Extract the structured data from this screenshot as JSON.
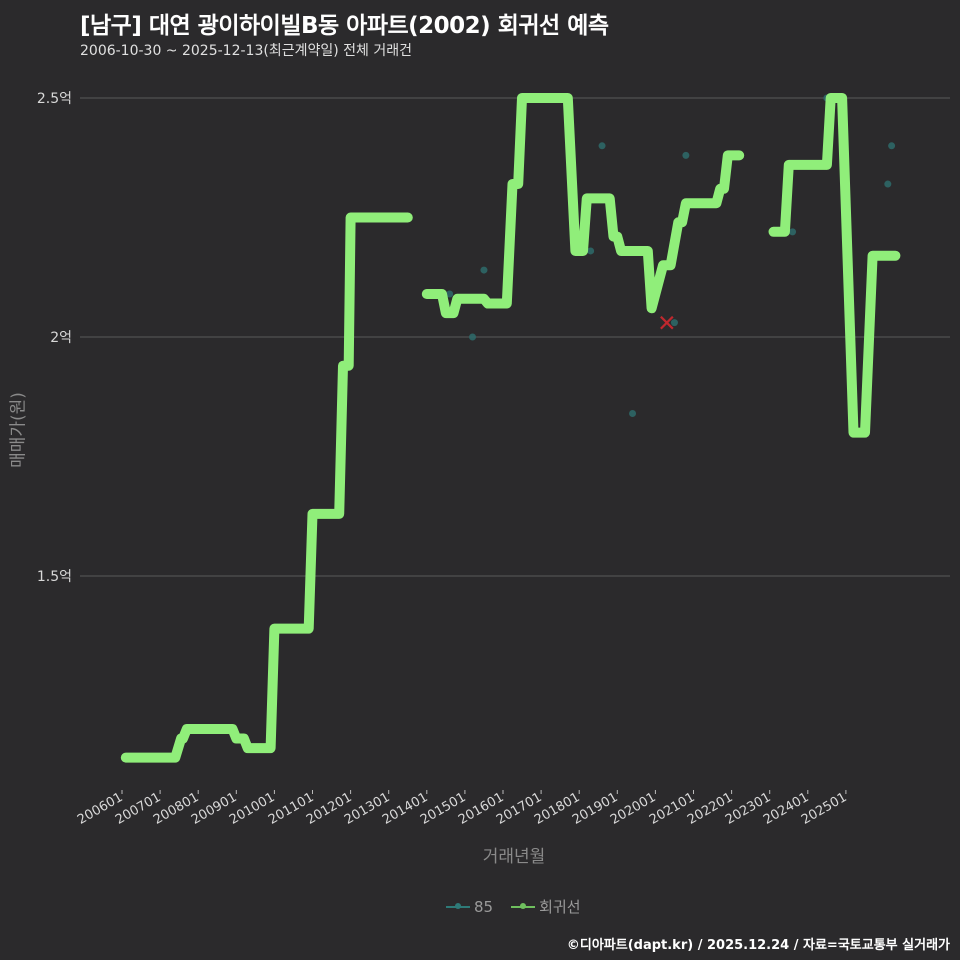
{
  "header": {
    "title": "[남구] 대연 광이하이빌B동 아파트(2002) 회귀선 예측",
    "subtitle": "2006-10-30 ~ 2025-12-13(최근계약일) 전체 거래건"
  },
  "footer": {
    "credit": "©디아파트(dapt.kr) / 2025.12.24 / 자료=국토교통부 실거래가"
  },
  "colors": {
    "background": "#2b2a2c",
    "regression_line": "#90ee7a",
    "points_85": "#2e6b6b",
    "outlier_marker": "#c0282e",
    "grid": "#5a5a5a"
  },
  "chart_data": {
    "type": "line",
    "title": "[남구] 대연 광이하이빌B동 아파트(2002) 회귀선 예측",
    "subtitle": "2006-10-30 ~ 2025-12-13(최근계약일) 전체 거래건",
    "xlabel": "거래년월",
    "ylabel": "매매가(원)",
    "y_ticks": [
      {
        "value": 2.5,
        "label": "2.5억"
      },
      {
        "value": 2.0,
        "label": "2억"
      },
      {
        "value": 1.5,
        "label": "1.5억"
      }
    ],
    "x_ticks": [
      "200601",
      "200701",
      "200801",
      "200901",
      "201001",
      "201101",
      "201201",
      "201301",
      "201401",
      "201501",
      "201601",
      "201701",
      "201801",
      "201901",
      "202001",
      "202101",
      "202201",
      "202301",
      "202401",
      "202501"
    ],
    "ylim": [
      1.05,
      2.6
    ],
    "y_unit": "억",
    "grid": true,
    "legend_position": "bottom",
    "legend": [
      "85",
      "회귀선"
    ],
    "series": [
      {
        "name": "회귀선",
        "segments": [
          [
            [
              2006.1,
              1.12
            ],
            [
              2007.4,
              1.12
            ],
            [
              2007.55,
              1.16
            ],
            [
              2007.6,
              1.16
            ],
            [
              2007.7,
              1.18
            ],
            [
              2008.9,
              1.18
            ],
            [
              2009.0,
              1.16
            ],
            [
              2009.2,
              1.16
            ],
            [
              2009.3,
              1.14
            ],
            [
              2009.9,
              1.14
            ],
            [
              2010.0,
              1.39
            ],
            [
              2010.9,
              1.39
            ],
            [
              2011.0,
              1.63
            ],
            [
              2011.7,
              1.63
            ],
            [
              2011.8,
              1.94
            ],
            [
              2011.95,
              1.94
            ],
            [
              2012.0,
              2.25
            ],
            [
              2013.5,
              2.25
            ]
          ],
          [
            [
              2014.0,
              2.09
            ],
            [
              2014.4,
              2.09
            ],
            [
              2014.5,
              2.05
            ],
            [
              2014.7,
              2.05
            ],
            [
              2014.8,
              2.08
            ],
            [
              2015.5,
              2.08
            ],
            [
              2015.6,
              2.07
            ],
            [
              2016.1,
              2.07
            ],
            [
              2016.25,
              2.32
            ],
            [
              2016.4,
              2.32
            ],
            [
              2016.5,
              2.5
            ],
            [
              2017.7,
              2.5
            ],
            [
              2017.9,
              2.18
            ],
            [
              2018.1,
              2.18
            ],
            [
              2018.2,
              2.29
            ],
            [
              2018.8,
              2.29
            ],
            [
              2018.9,
              2.21
            ],
            [
              2019.0,
              2.21
            ],
            [
              2019.1,
              2.18
            ],
            [
              2019.8,
              2.18
            ],
            [
              2019.9,
              2.06
            ],
            [
              2020.1,
              2.12
            ],
            [
              2020.2,
              2.15
            ],
            [
              2020.4,
              2.15
            ],
            [
              2020.6,
              2.24
            ],
            [
              2020.7,
              2.24
            ],
            [
              2020.8,
              2.28
            ],
            [
              2021.6,
              2.28
            ],
            [
              2021.7,
              2.31
            ],
            [
              2021.8,
              2.31
            ],
            [
              2021.9,
              2.38
            ],
            [
              2022.2,
              2.38
            ]
          ],
          [
            [
              2023.1,
              2.22
            ],
            [
              2023.4,
              2.22
            ],
            [
              2023.5,
              2.36
            ],
            [
              2024.5,
              2.36
            ],
            [
              2024.6,
              2.5
            ],
            [
              2024.9,
              2.5
            ],
            [
              2025.2,
              1.8
            ],
            [
              2025.5,
              1.8
            ],
            [
              2025.7,
              2.17
            ],
            [
              2026.3,
              2.17
            ]
          ]
        ]
      },
      {
        "name": "85",
        "type": "scatter",
        "points": [
          [
            2014.6,
            2.09
          ],
          [
            2015.2,
            2.0
          ],
          [
            2015.5,
            2.14
          ],
          [
            2018.3,
            2.18
          ],
          [
            2018.6,
            2.4
          ],
          [
            2019.4,
            1.84
          ],
          [
            2020.5,
            2.03
          ],
          [
            2020.8,
            2.38
          ],
          [
            2023.6,
            2.22
          ],
          [
            2024.5,
            2.5
          ],
          [
            2026.1,
            2.32
          ],
          [
            2026.2,
            2.4
          ],
          [
            2025.4,
            1.8
          ]
        ]
      }
    ],
    "annotations": [
      {
        "type": "x-marker",
        "x": 2020.3,
        "y": 2.03,
        "color": "#c0282e"
      }
    ]
  },
  "axes": {
    "y_tick_labels": [
      "2.5억",
      "2억",
      "1.5억"
    ],
    "x_tick_labels": [
      "200601",
      "200701",
      "200801",
      "200901",
      "201001",
      "201101",
      "201201",
      "201301",
      "201401",
      "201501",
      "201601",
      "201701",
      "201801",
      "201901",
      "202001",
      "202101",
      "202201",
      "202301",
      "202401",
      "202501"
    ],
    "xlabel": "거래년월",
    "ylabel": "매매가(원)"
  },
  "legend": {
    "items": [
      {
        "label": "85",
        "color": "#2e7a78"
      },
      {
        "label": "회귀선",
        "color": "#6fbf5e"
      }
    ]
  }
}
